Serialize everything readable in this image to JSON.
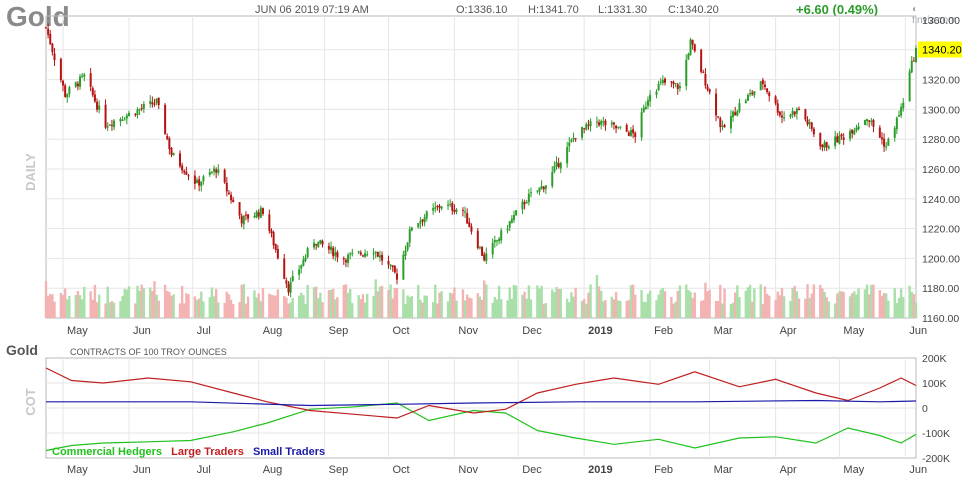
{
  "header": {
    "title": "Gold",
    "datetime": "JUN 06 2019 07:19 AM",
    "open": "O:1336.10",
    "high": "H:1341.70",
    "low": "L:1331.30",
    "close": "C:1340.20",
    "change": "+6.60 (0.49%)",
    "brand": "finviz.com"
  },
  "colors": {
    "up": "#2a9d2a",
    "down": "#b51212",
    "vol_up": "#a9dfa9",
    "vol_down": "#f4b3b3",
    "last_price_bg": "#ffff00",
    "commercial": "#21c21e",
    "large": "#c01f1f",
    "small": "#1a1aa8"
  },
  "chart_data": [
    {
      "type": "candlestick",
      "side_label": "DAILY",
      "y_ticks": [
        "1360.00",
        "1340.00",
        "1320.00",
        "1300.00",
        "1280.00",
        "1260.00",
        "1240.00",
        "1220.00",
        "1200.00",
        "1180.00",
        "1160.00"
      ],
      "ylim": [
        1160,
        1360
      ],
      "x_ticks": [
        "May",
        "Jun",
        "Jul",
        "Aug",
        "Sep",
        "Oct",
        "Nov",
        "Dec",
        "2019",
        "Feb",
        "Mar",
        "Apr",
        "May",
        "Jun"
      ],
      "last_price": "1340.20",
      "close_path_nodes": [
        {
          "d": "2018-04-23",
          "v": 1355
        },
        {
          "d": "2018-05-02",
          "v": 1310
        },
        {
          "d": "2018-05-11",
          "v": 1322
        },
        {
          "d": "2018-05-21",
          "v": 1290
        },
        {
          "d": "2018-06-06",
          "v": 1300
        },
        {
          "d": "2018-06-14",
          "v": 1305
        },
        {
          "d": "2018-06-21",
          "v": 1270
        },
        {
          "d": "2018-07-03",
          "v": 1250
        },
        {
          "d": "2018-07-12",
          "v": 1260
        },
        {
          "d": "2018-07-24",
          "v": 1226
        },
        {
          "d": "2018-08-03",
          "v": 1232
        },
        {
          "d": "2018-08-15",
          "v": 1180
        },
        {
          "d": "2018-08-27",
          "v": 1212
        },
        {
          "d": "2018-09-10",
          "v": 1200
        },
        {
          "d": "2018-09-24",
          "v": 1206
        },
        {
          "d": "2018-10-05",
          "v": 1188
        },
        {
          "d": "2018-10-12",
          "v": 1222
        },
        {
          "d": "2018-10-26",
          "v": 1236
        },
        {
          "d": "2018-11-05",
          "v": 1232
        },
        {
          "d": "2018-11-15",
          "v": 1200
        },
        {
          "d": "2018-11-26",
          "v": 1222
        },
        {
          "d": "2018-12-05",
          "v": 1240
        },
        {
          "d": "2018-12-14",
          "v": 1250
        },
        {
          "d": "2018-12-28",
          "v": 1283
        },
        {
          "d": "2019-01-07",
          "v": 1292
        },
        {
          "d": "2019-01-25",
          "v": 1283
        },
        {
          "d": "2019-02-01",
          "v": 1312
        },
        {
          "d": "2019-02-07",
          "v": 1318
        },
        {
          "d": "2019-02-15",
          "v": 1315
        },
        {
          "d": "2019-02-20",
          "v": 1345
        },
        {
          "d": "2019-02-28",
          "v": 1315
        },
        {
          "d": "2019-03-07",
          "v": 1286
        },
        {
          "d": "2019-03-15",
          "v": 1303
        },
        {
          "d": "2019-03-26",
          "v": 1318
        },
        {
          "d": "2019-04-04",
          "v": 1295
        },
        {
          "d": "2019-04-12",
          "v": 1300
        },
        {
          "d": "2019-04-23",
          "v": 1275
        },
        {
          "d": "2019-05-03",
          "v": 1282
        },
        {
          "d": "2019-05-14",
          "v": 1295
        },
        {
          "d": "2019-05-23",
          "v": 1275
        },
        {
          "d": "2019-05-30",
          "v": 1300
        },
        {
          "d": "2019-06-04",
          "v": 1330
        },
        {
          "d": "2019-06-06",
          "v": 1340.2
        }
      ]
    },
    {
      "type": "line",
      "title": "CONTRACTS OF 100 TROY OUNCES",
      "side_label": "COT",
      "y_ticks": [
        "200K",
        "100K",
        "0",
        "-100K",
        "-200K"
      ],
      "ylim": [
        -200000,
        200000
      ],
      "x_ticks": [
        "May",
        "Jun",
        "Jul",
        "Aug",
        "Sep",
        "Oct",
        "Nov",
        "Dec",
        "2019",
        "Feb",
        "Mar",
        "Apr",
        "May",
        "Jun"
      ],
      "series": [
        {
          "name": "Commercial Hedgers",
          "points": [
            {
              "d": "2018-04-23",
              "v": -170000
            },
            {
              "d": "2018-05-05",
              "v": -150000
            },
            {
              "d": "2018-05-20",
              "v": -140000
            },
            {
              "d": "2018-06-10",
              "v": -135000
            },
            {
              "d": "2018-06-30",
              "v": -130000
            },
            {
              "d": "2018-07-20",
              "v": -95000
            },
            {
              "d": "2018-08-05",
              "v": -60000
            },
            {
              "d": "2018-08-25",
              "v": -5000
            },
            {
              "d": "2018-09-15",
              "v": 5000
            },
            {
              "d": "2018-10-05",
              "v": 20000
            },
            {
              "d": "2018-10-20",
              "v": -50000
            },
            {
              "d": "2018-11-10",
              "v": -10000
            },
            {
              "d": "2018-11-25",
              "v": -20000
            },
            {
              "d": "2018-12-10",
              "v": -90000
            },
            {
              "d": "2018-12-28",
              "v": -120000
            },
            {
              "d": "2019-01-15",
              "v": -145000
            },
            {
              "d": "2019-02-05",
              "v": -125000
            },
            {
              "d": "2019-02-22",
              "v": -160000
            },
            {
              "d": "2019-03-15",
              "v": -120000
            },
            {
              "d": "2019-04-01",
              "v": -115000
            },
            {
              "d": "2019-04-20",
              "v": -140000
            },
            {
              "d": "2019-05-05",
              "v": -80000
            },
            {
              "d": "2019-05-20",
              "v": -110000
            },
            {
              "d": "2019-05-30",
              "v": -140000
            },
            {
              "d": "2019-06-06",
              "v": -105000
            }
          ]
        },
        {
          "name": "Large Traders",
          "points": [
            {
              "d": "2018-04-23",
              "v": 160000
            },
            {
              "d": "2018-05-05",
              "v": 110000
            },
            {
              "d": "2018-05-20",
              "v": 100000
            },
            {
              "d": "2018-06-10",
              "v": 120000
            },
            {
              "d": "2018-06-30",
              "v": 105000
            },
            {
              "d": "2018-07-20",
              "v": 60000
            },
            {
              "d": "2018-08-05",
              "v": 25000
            },
            {
              "d": "2018-08-25",
              "v": -10000
            },
            {
              "d": "2018-09-15",
              "v": -25000
            },
            {
              "d": "2018-10-05",
              "v": -40000
            },
            {
              "d": "2018-10-20",
              "v": 10000
            },
            {
              "d": "2018-11-10",
              "v": -20000
            },
            {
              "d": "2018-11-25",
              "v": -5000
            },
            {
              "d": "2018-12-10",
              "v": 60000
            },
            {
              "d": "2018-12-28",
              "v": 95000
            },
            {
              "d": "2019-01-15",
              "v": 120000
            },
            {
              "d": "2019-02-05",
              "v": 95000
            },
            {
              "d": "2019-02-22",
              "v": 145000
            },
            {
              "d": "2019-03-15",
              "v": 85000
            },
            {
              "d": "2019-04-01",
              "v": 115000
            },
            {
              "d": "2019-04-20",
              "v": 60000
            },
            {
              "d": "2019-05-05",
              "v": 30000
            },
            {
              "d": "2019-05-20",
              "v": 80000
            },
            {
              "d": "2019-05-30",
              "v": 120000
            },
            {
              "d": "2019-06-06",
              "v": 90000
            }
          ]
        },
        {
          "name": "Small Traders",
          "points": [
            {
              "d": "2018-04-23",
              "v": 25000
            },
            {
              "d": "2018-06-30",
              "v": 25000
            },
            {
              "d": "2018-08-25",
              "v": 10000
            },
            {
              "d": "2018-10-05",
              "v": 15000
            },
            {
              "d": "2018-11-10",
              "v": 20000
            },
            {
              "d": "2018-12-28",
              "v": 25000
            },
            {
              "d": "2019-02-22",
              "v": 25000
            },
            {
              "d": "2019-04-20",
              "v": 30000
            },
            {
              "d": "2019-05-20",
              "v": 25000
            },
            {
              "d": "2019-06-06",
              "v": 28000
            }
          ]
        }
      ]
    }
  ]
}
